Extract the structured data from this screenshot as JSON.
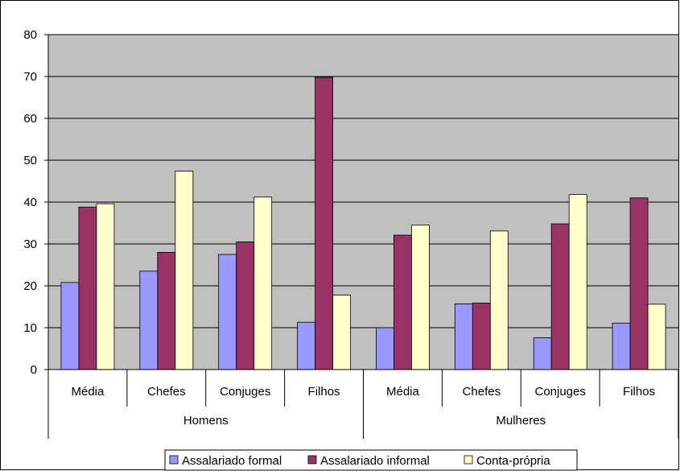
{
  "chart_data": {
    "type": "bar",
    "title": "",
    "xlabel": "",
    "ylabel": "",
    "ylim": [
      0,
      80
    ],
    "yticks": [
      0,
      10,
      20,
      30,
      40,
      50,
      60,
      70,
      80
    ],
    "grid": true,
    "legend_position": "bottom",
    "groups": [
      {
        "label": "Homens",
        "categories": [
          "Média",
          "Chefes",
          "Conjuges",
          "Filhos"
        ]
      },
      {
        "label": "Mulheres",
        "categories": [
          "Média",
          "Chefes",
          "Conjuges",
          "Filhos"
        ]
      }
    ],
    "series": [
      {
        "name": "Assalariado formal",
        "color": "#9999ff",
        "values": [
          20.8,
          23.5,
          27.5,
          11.3,
          10.0,
          15.7,
          7.6,
          11.1
        ]
      },
      {
        "name": "Assalariado informal",
        "color": "#993366",
        "values": [
          38.8,
          28.0,
          30.5,
          69.8,
          32.1,
          15.9,
          34.8,
          41.0
        ]
      },
      {
        "name": "Conta-própria",
        "color": "#ffffcc",
        "values": [
          39.6,
          47.4,
          41.2,
          17.8,
          34.5,
          33.1,
          41.8,
          15.6
        ]
      }
    ],
    "colors": {
      "plot_bg": "#c0c0c0",
      "gridline": "#000000"
    }
  }
}
